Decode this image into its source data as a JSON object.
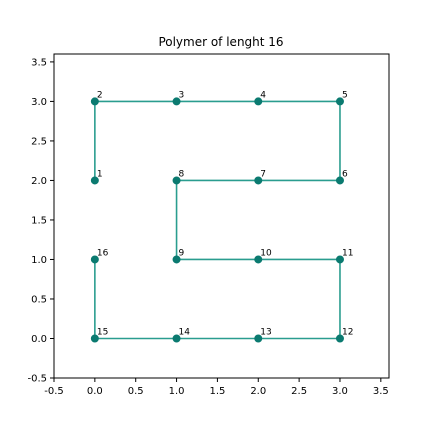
{
  "chart_data": {
    "type": "scatter",
    "title": "Polymer of lenght 16",
    "xlabel": "",
    "ylabel": "",
    "xlim": [
      -0.5,
      3.6
    ],
    "ylim": [
      -0.5,
      3.6
    ],
    "xticks": [
      "-0.5",
      "0.0",
      "0.5",
      "1.0",
      "1.5",
      "2.0",
      "2.5",
      "3.0",
      "3.5"
    ],
    "yticks": [
      "-0.5",
      "0.0",
      "0.5",
      "1.0",
      "1.5",
      "2.0",
      "2.5",
      "3.0",
      "3.5"
    ],
    "grid": false,
    "series": [
      {
        "x": [
          0,
          0,
          1,
          2,
          3,
          3,
          2,
          1,
          1,
          2,
          3,
          3,
          2,
          1,
          0,
          0
        ],
        "y": [
          2,
          3,
          3,
          3,
          3,
          2,
          2,
          2,
          1,
          1,
          1,
          0,
          0,
          0,
          0,
          1
        ],
        "labels": [
          "1",
          "2",
          "3",
          "4",
          "5",
          "6",
          "7",
          "8",
          "9",
          "10",
          "11",
          "12",
          "13",
          "14",
          "15",
          "16"
        ]
      }
    ],
    "colors": {
      "line": "#2a9d8f",
      "marker": "#0b7a70"
    }
  }
}
